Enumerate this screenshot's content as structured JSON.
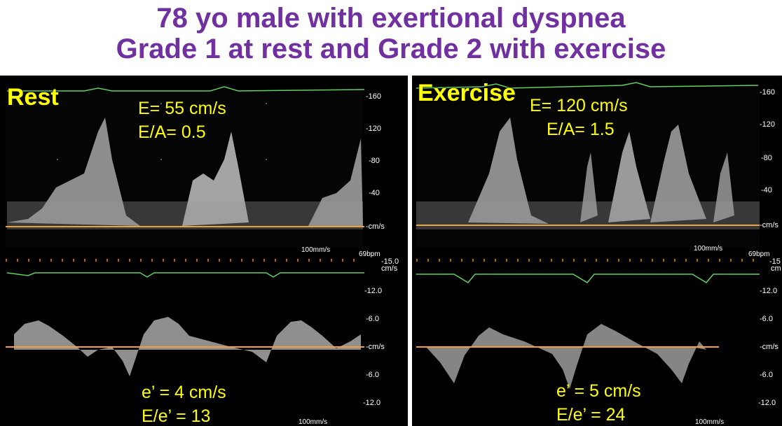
{
  "title": {
    "line1": "78 yo male with exertional dyspnea",
    "line2": "Grade 1 at rest and Grade 2 with exercise"
  },
  "rest": {
    "label": "Rest",
    "mitral": {
      "e_text": "E= 55 cm/s",
      "ea_text": "E/A= 0.5",
      "ticks": [
        "-160",
        "-120",
        "-80",
        "-40",
        "-cm/s"
      ]
    },
    "tissue": {
      "e_prime_text": "e’ = 4 cm/s",
      "ratio_text": "E/e’ = 13",
      "ticks": [
        "-15.0",
        "cm/s",
        "-12.0",
        "-6.0",
        "-cm/s",
        "-6.0",
        "-12.0"
      ]
    },
    "speed": "100mm/s",
    "hr": "69bpm"
  },
  "exercise": {
    "label": "Exercise",
    "mitral": {
      "e_text": "E= 120 cm/s",
      "ea_text": "E/A= 1.5",
      "ticks": [
        "-160",
        "-120",
        "-80",
        "-40",
        "-cm/s"
      ]
    },
    "tissue": {
      "e_prime_text": "e’ = 5 cm/s",
      "ratio_text": "E/e’ = 24",
      "ticks": [
        "-15",
        "cm",
        "-12.0",
        "-6.0",
        "-cm/s",
        "-6.0",
        "-12.0"
      ]
    },
    "speed": "100mm/s",
    "hr": "69bpm"
  },
  "colors": {
    "title": "#7030a0",
    "annotation": "#ffff00",
    "baseline": "#f0a040",
    "ecg": "#60d060"
  }
}
